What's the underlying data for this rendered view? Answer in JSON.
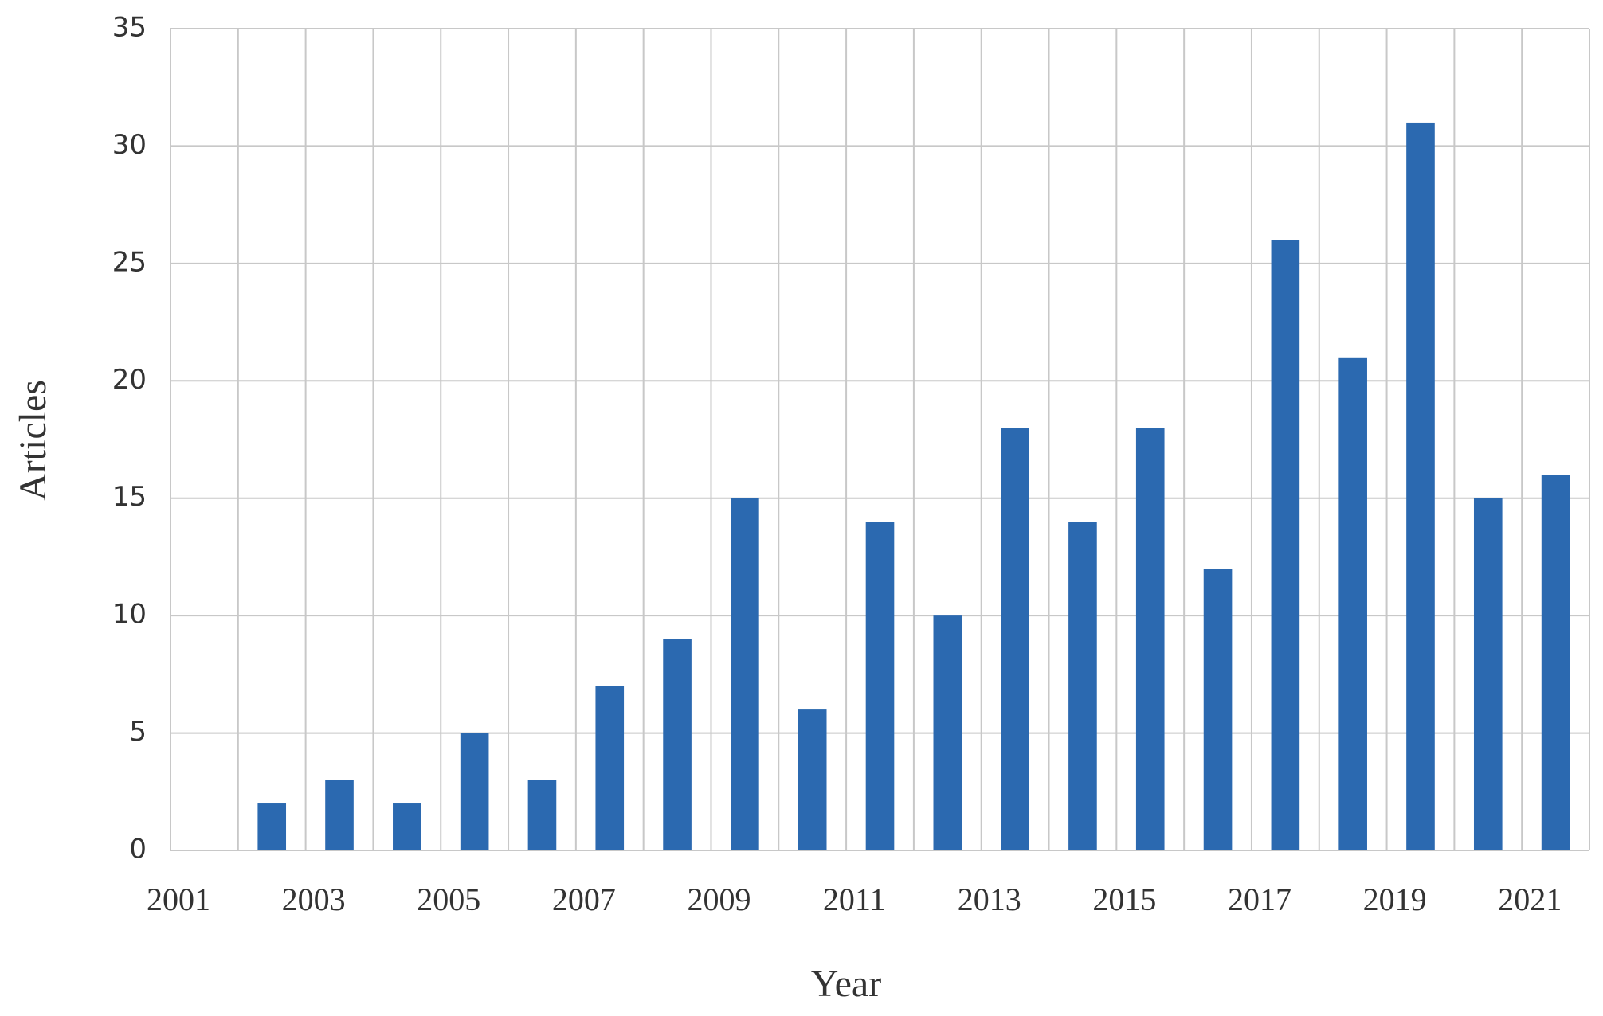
{
  "chart_data": {
    "type": "bar",
    "x_label": "Year",
    "y_label": "Articles",
    "categories": [
      "2001",
      null,
      "2003",
      null,
      "2005",
      null,
      "2007",
      null,
      "2009",
      null,
      "2011",
      null,
      "2013",
      null,
      "2015",
      null,
      "2017",
      null,
      "2019",
      null,
      "2021"
    ],
    "values": [
      0,
      2,
      3,
      2,
      5,
      3,
      7,
      9,
      15,
      6,
      14,
      10,
      18,
      14,
      18,
      12,
      26,
      21,
      31,
      15,
      16
    ],
    "color": "#2b69b0",
    "ylim": [
      0,
      35
    ],
    "yticks": [
      0,
      5,
      10,
      15,
      20,
      25,
      30,
      35
    ],
    "grid": true
  }
}
